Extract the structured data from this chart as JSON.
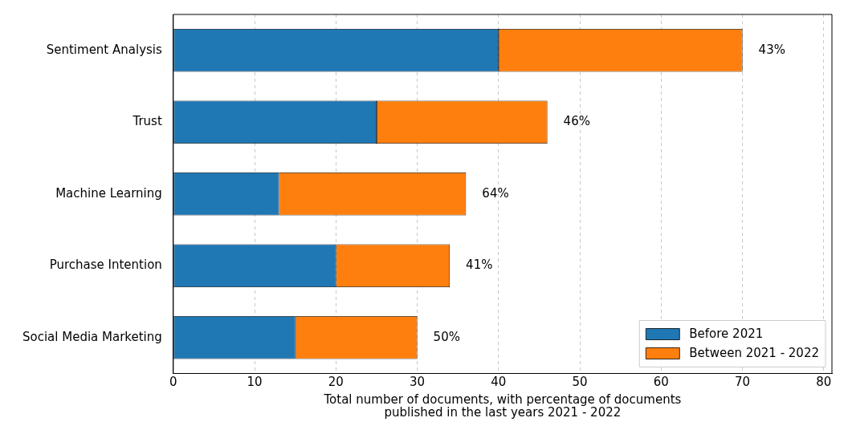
{
  "chart_data": {
    "type": "bar",
    "orientation": "horizontal",
    "stacked": true,
    "xlabel": "Total number of documents, with percentage of documents\npublished in the last years 2021 - 2022",
    "categories": [
      "Sentiment Analysis",
      "Trust",
      "Machine Learning",
      "Purchase Intention",
      "Social Media Marketing"
    ],
    "series": [
      {
        "name": "Before 2021",
        "color": "#1f77b4",
        "values": [
          40,
          25,
          13,
          20,
          15
        ]
      },
      {
        "name": "Between 2021 - 2022",
        "color": "#ff7f0e",
        "values": [
          30,
          21,
          23,
          14,
          15
        ]
      }
    ],
    "xlim": [
      0,
      81
    ],
    "xticks": [
      0,
      10,
      20,
      30,
      40,
      50,
      60,
      70,
      80
    ],
    "grid": "x",
    "legend": "bottom right",
    "annotations": [
      {
        "text": "43%",
        "x": 70,
        "y": "Sentiment Analysis"
      },
      {
        "text": "46%",
        "x": 46,
        "y": "Trust"
      },
      {
        "text": "64%",
        "x": 36,
        "y": "Machine Learning"
      },
      {
        "text": "41%",
        "x": 34,
        "y": "Purchase Intention"
      },
      {
        "text": "50%",
        "x": 30,
        "y": "Social Media Marketing"
      }
    ]
  }
}
